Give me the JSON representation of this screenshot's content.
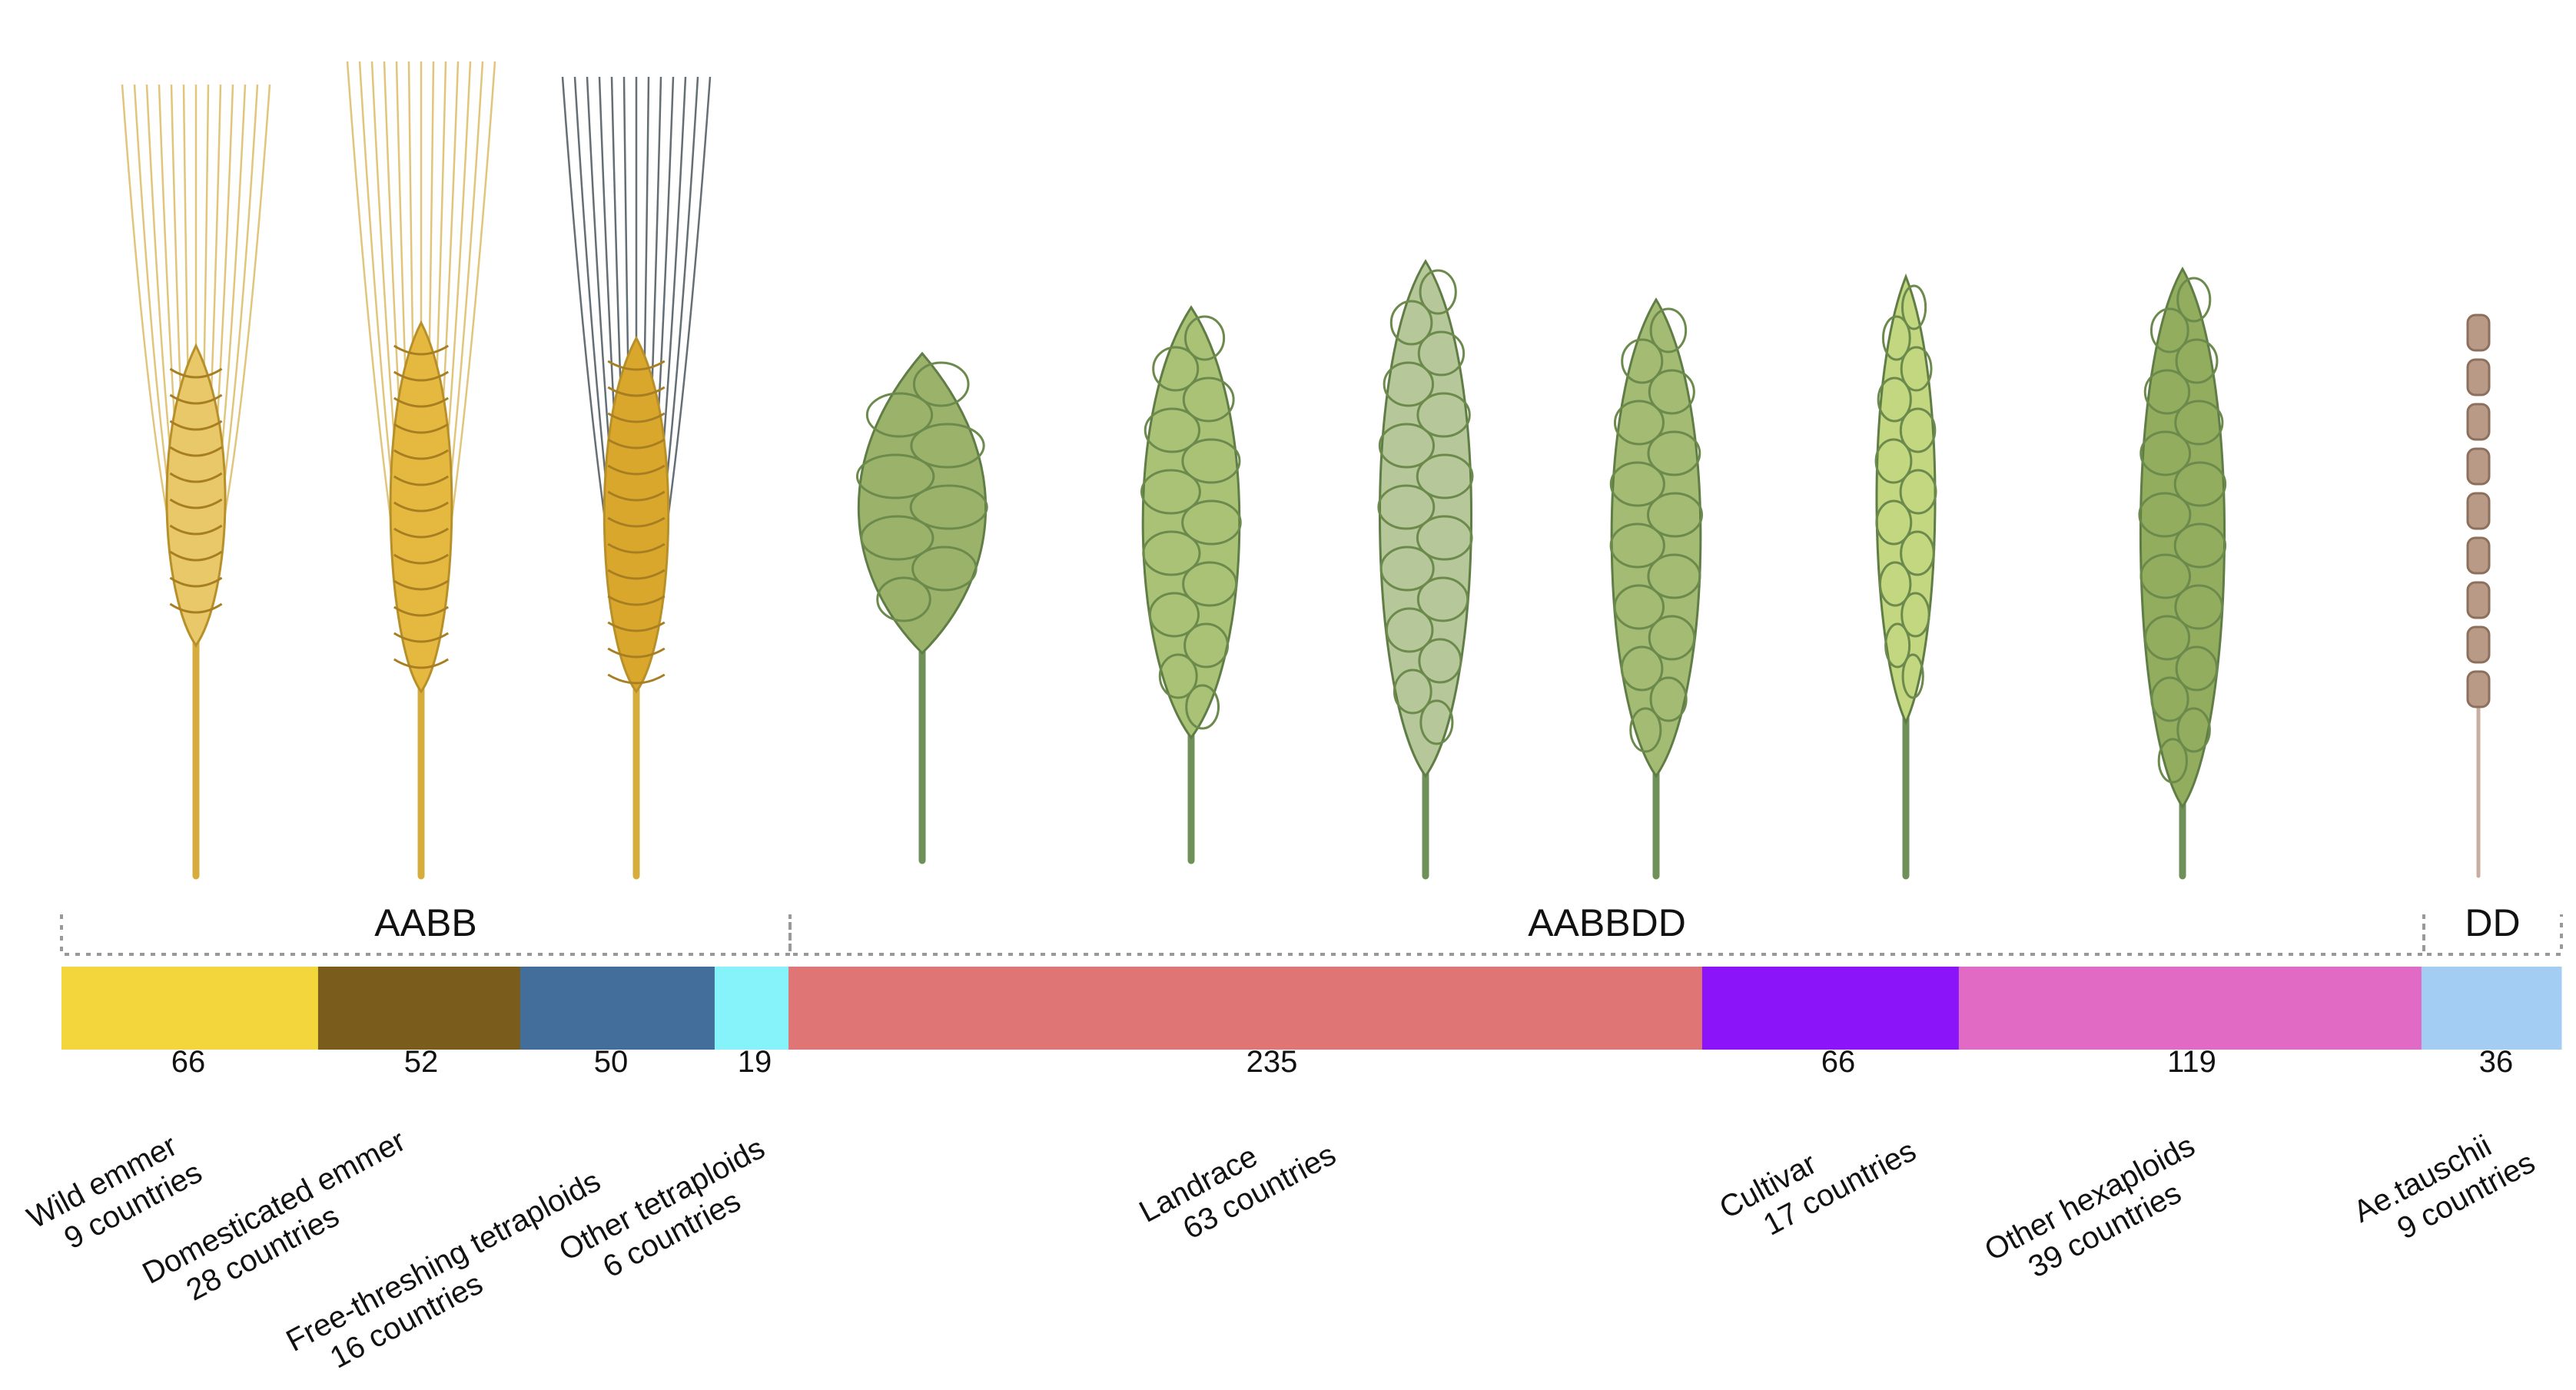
{
  "ploidy_groups": [
    {
      "label": "AABB"
    },
    {
      "label": "AABBDD"
    },
    {
      "label": "DD"
    }
  ],
  "categories": [
    {
      "name": "Wild emmer",
      "count": "66",
      "countries": "9 countries",
      "color": "#f3d63b",
      "ploidy": "AABB"
    },
    {
      "name": "Domesticated emmer",
      "count": "52",
      "countries": "28 countries",
      "color": "#7a5c1d",
      "ploidy": "AABB"
    },
    {
      "name": "Free-threshing tetraploids",
      "count": "50",
      "countries": "16 countries",
      "color": "#436d9a",
      "ploidy": "AABB"
    },
    {
      "name": "Other tetraploids",
      "count": "19",
      "countries": "6 countries",
      "color": "#86f3fa",
      "ploidy": "AABB"
    },
    {
      "name": "Landrace",
      "count": "235",
      "countries": "63 countries",
      "color": "#e07575",
      "ploidy": "AABBDD"
    },
    {
      "name": "Cultivar",
      "count": "66",
      "countries": "17 countries",
      "color": "#8b14f8",
      "ploidy": "AABBDD"
    },
    {
      "name": "Other hexaploids",
      "count": "119",
      "countries": "39 countries",
      "color": "#e06ac4",
      "ploidy": "AABBDD"
    },
    {
      "name": "Ae.tauschii",
      "count": "36",
      "countries": "9 countries",
      "color": "#a3cdf3",
      "ploidy": "DD"
    }
  ],
  "spikes": [
    {
      "kind": "awned-tetraploid",
      "color": "#e9c86a"
    },
    {
      "kind": "awned-tetraploid",
      "color": "#e5b940"
    },
    {
      "kind": "awned-black",
      "color": "#d9a72c"
    },
    {
      "kind": "hexaploid-club",
      "color": "#9bb26a"
    },
    {
      "kind": "hexaploid",
      "color": "#a9c276"
    },
    {
      "kind": "hexaploid",
      "color": "#b6c79a"
    },
    {
      "kind": "hexaploid",
      "color": "#a3bb72"
    },
    {
      "kind": "hexaploid-slim",
      "color": "#c3d680"
    },
    {
      "kind": "hexaploid",
      "color": "#92ad5e"
    },
    {
      "kind": "tauschii",
      "color": "#b89a86"
    }
  ]
}
